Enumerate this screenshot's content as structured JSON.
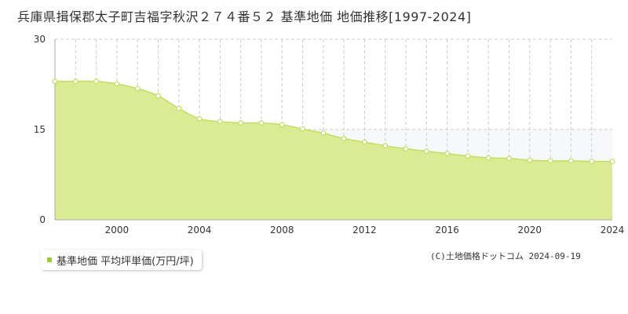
{
  "title": "兵庫県揖保郡太子町吉福字秋沢２７４番５２ 基準地価 地価推移[1997-2024]",
  "legend": {
    "label": "基準地価 平均坪単価(万円/坪)"
  },
  "copyright": "(C)土地価格ドットコム 2024-09-19",
  "colors": {
    "fill": "#dbeb94",
    "line": "#c2de62",
    "marker_fill": "#ffffff",
    "legend_swatch": "#9acd32",
    "upper_band": "#f7f8fb"
  },
  "chart_data": {
    "type": "area",
    "title": "",
    "xlabel": "",
    "ylabel": "",
    "xlim": [
      1997,
      2024
    ],
    "ylim": [
      0,
      30
    ],
    "y_ticks": [
      "0",
      "15",
      "30"
    ],
    "x_ticks": [
      "2000",
      "2004",
      "2008",
      "2012",
      "2016",
      "2020",
      "2024"
    ],
    "grid": true,
    "series": [
      {
        "name": "基準地価 平均坪単価(万円/坪)",
        "x": [
          1997,
          1998,
          1999,
          2000,
          2001,
          2002,
          2003,
          2004,
          2005,
          2006,
          2007,
          2008,
          2009,
          2010,
          2011,
          2012,
          2013,
          2014,
          2015,
          2016,
          2017,
          2018,
          2019,
          2020,
          2021,
          2022,
          2023,
          2024
        ],
        "values": [
          23.0,
          23.0,
          23.0,
          22.6,
          21.8,
          20.6,
          18.5,
          16.8,
          16.3,
          16.1,
          16.1,
          15.8,
          15.1,
          14.4,
          13.5,
          12.9,
          12.3,
          11.8,
          11.4,
          11.0,
          10.6,
          10.3,
          10.2,
          9.9,
          9.8,
          9.8,
          9.7,
          9.7
        ]
      }
    ]
  }
}
